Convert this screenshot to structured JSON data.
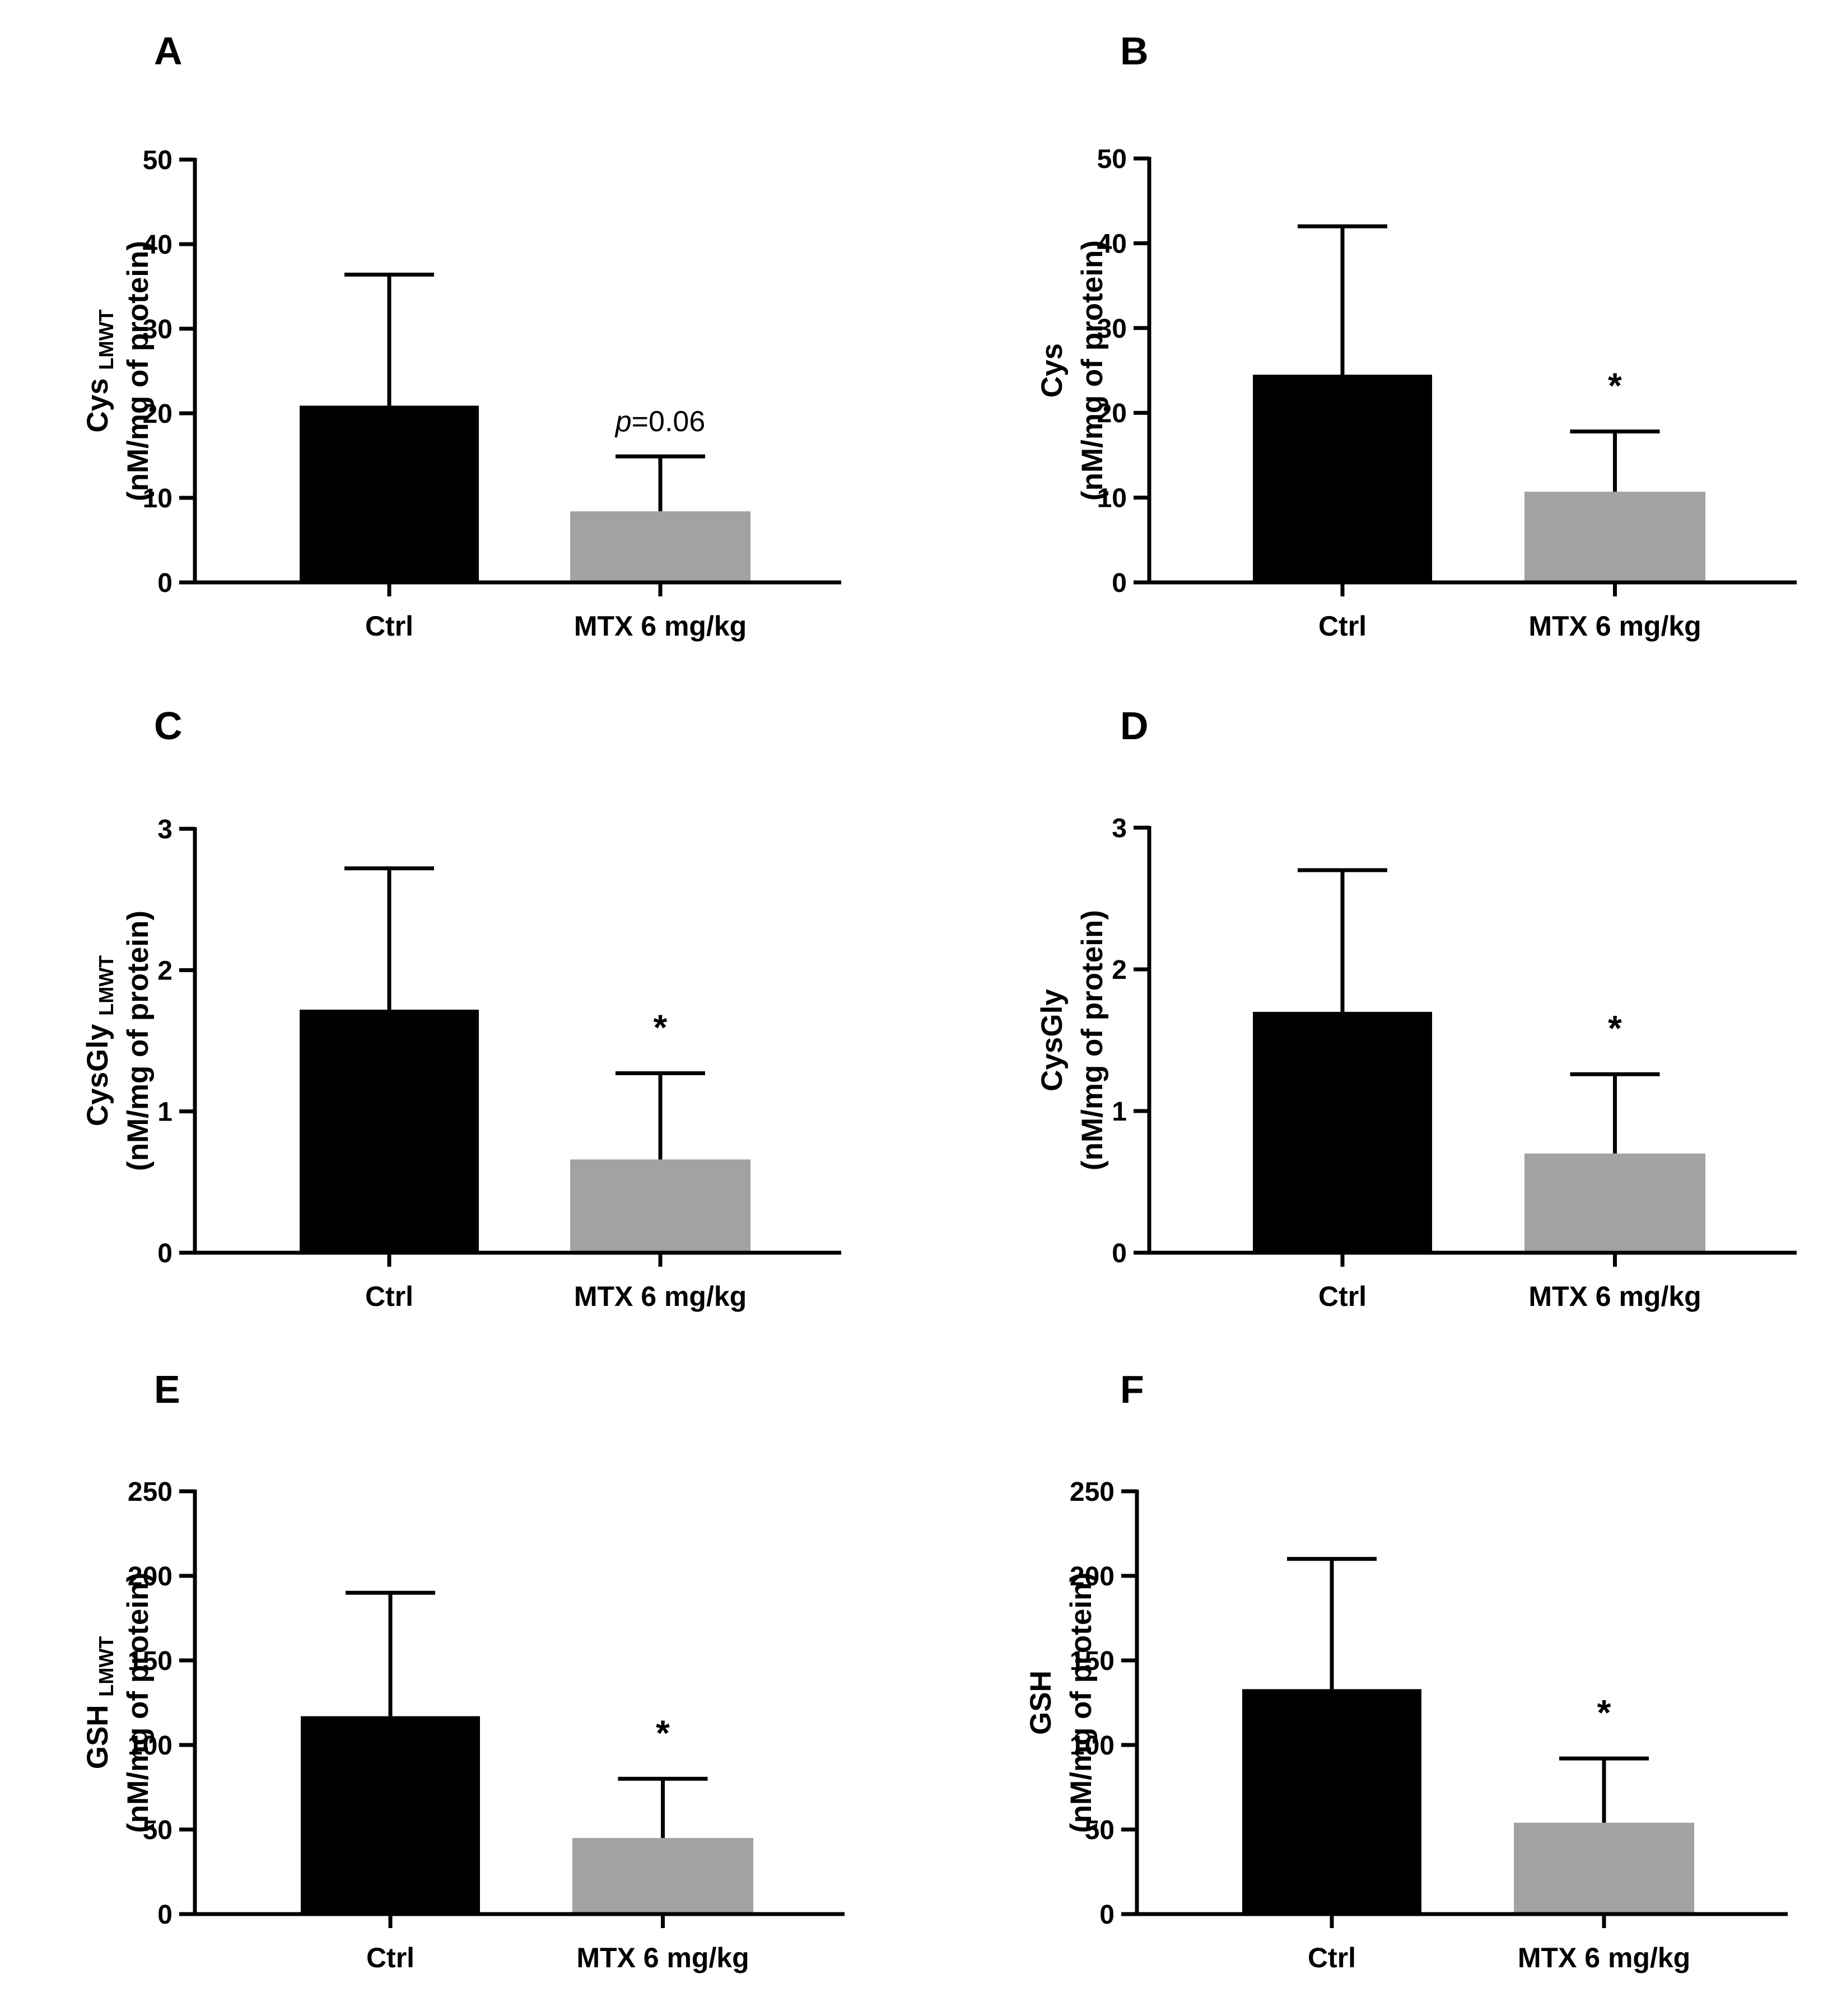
{
  "chart_data": [
    {
      "panel": "A",
      "type": "bar",
      "ylabel": "Cys",
      "ylabel_subscript": "LMWT",
      "ylabel_line2": "(nM/mg of protein)",
      "categories": [
        "Ctrl",
        "MTX 6 mg/kg"
      ],
      "values": [
        20.9,
        8.4
      ],
      "errors": [
        15.5,
        6.5
      ],
      "colors": [
        "#000000",
        "#a2a2a5"
      ],
      "ylim": [
        0,
        50
      ],
      "yticks": [
        0,
        10,
        20,
        30,
        40,
        50
      ],
      "annotations": [
        {
          "category_index": 1,
          "italic_prefix": "p",
          "text": "=0.06"
        }
      ]
    },
    {
      "panel": "B",
      "type": "bar",
      "ylabel": "Cys",
      "ylabel_subscript": "",
      "ylabel_line2": "(nM/mg of protein)",
      "categories": [
        "Ctrl",
        "MTX 6 mg/kg"
      ],
      "values": [
        24.5,
        10.7
      ],
      "errors": [
        17.5,
        7.1
      ],
      "colors": [
        "#000000",
        "#a2a2a5"
      ],
      "ylim": [
        0,
        50
      ],
      "yticks": [
        0,
        10,
        20,
        30,
        40,
        50
      ],
      "annotations": [
        {
          "category_index": 1,
          "italic_prefix": "",
          "text": "*"
        }
      ]
    },
    {
      "panel": "C",
      "type": "bar",
      "ylabel": "CysGly",
      "ylabel_subscript": "LMWT",
      "ylabel_line2": "(nM/mg of protein)",
      "categories": [
        "Ctrl",
        "MTX 6 mg/kg"
      ],
      "values": [
        1.72,
        0.66
      ],
      "errors": [
        1.0,
        0.61
      ],
      "colors": [
        "#000000",
        "#a2a2a5"
      ],
      "ylim": [
        0,
        3
      ],
      "yticks": [
        0,
        1,
        2,
        3
      ],
      "annotations": [
        {
          "category_index": 1,
          "italic_prefix": "",
          "text": "*"
        }
      ]
    },
    {
      "panel": "D",
      "type": "bar",
      "ylabel": "CysGly",
      "ylabel_subscript": "",
      "ylabel_line2": "(nM/mg of protein)",
      "categories": [
        "Ctrl",
        "MTX 6 mg/kg"
      ],
      "values": [
        1.7,
        0.7
      ],
      "errors": [
        1.0,
        0.56
      ],
      "colors": [
        "#000000",
        "#a2a2a5"
      ],
      "ylim": [
        0,
        3
      ],
      "yticks": [
        0,
        1,
        2,
        3
      ],
      "annotations": [
        {
          "category_index": 1,
          "italic_prefix": "",
          "text": "*"
        }
      ]
    },
    {
      "panel": "E",
      "type": "bar",
      "ylabel": "GSH",
      "ylabel_subscript": "LMWT",
      "ylabel_line2": "(nM/mg of protein)",
      "categories": [
        "Ctrl",
        "MTX 6 mg/kg"
      ],
      "values": [
        117,
        45
      ],
      "errors": [
        73,
        35
      ],
      "colors": [
        "#000000",
        "#a2a2a5"
      ],
      "ylim": [
        0,
        250
      ],
      "yticks": [
        0,
        50,
        100,
        150,
        200,
        250
      ],
      "annotations": [
        {
          "category_index": 1,
          "italic_prefix": "",
          "text": "*"
        }
      ]
    },
    {
      "panel": "F",
      "type": "bar",
      "ylabel": "GSH",
      "ylabel_subscript": "",
      "ylabel_line2": "(nM/mg of protein)",
      "categories": [
        "Ctrl",
        "MTX 6 mg/kg"
      ],
      "values": [
        133,
        54
      ],
      "errors": [
        77,
        38
      ],
      "colors": [
        "#000000",
        "#a2a2a5"
      ],
      "ylim": [
        0,
        250
      ],
      "yticks": [
        0,
        50,
        100,
        150,
        200,
        250
      ],
      "annotations": [
        {
          "category_index": 1,
          "italic_prefix": "",
          "text": "*"
        }
      ]
    }
  ]
}
